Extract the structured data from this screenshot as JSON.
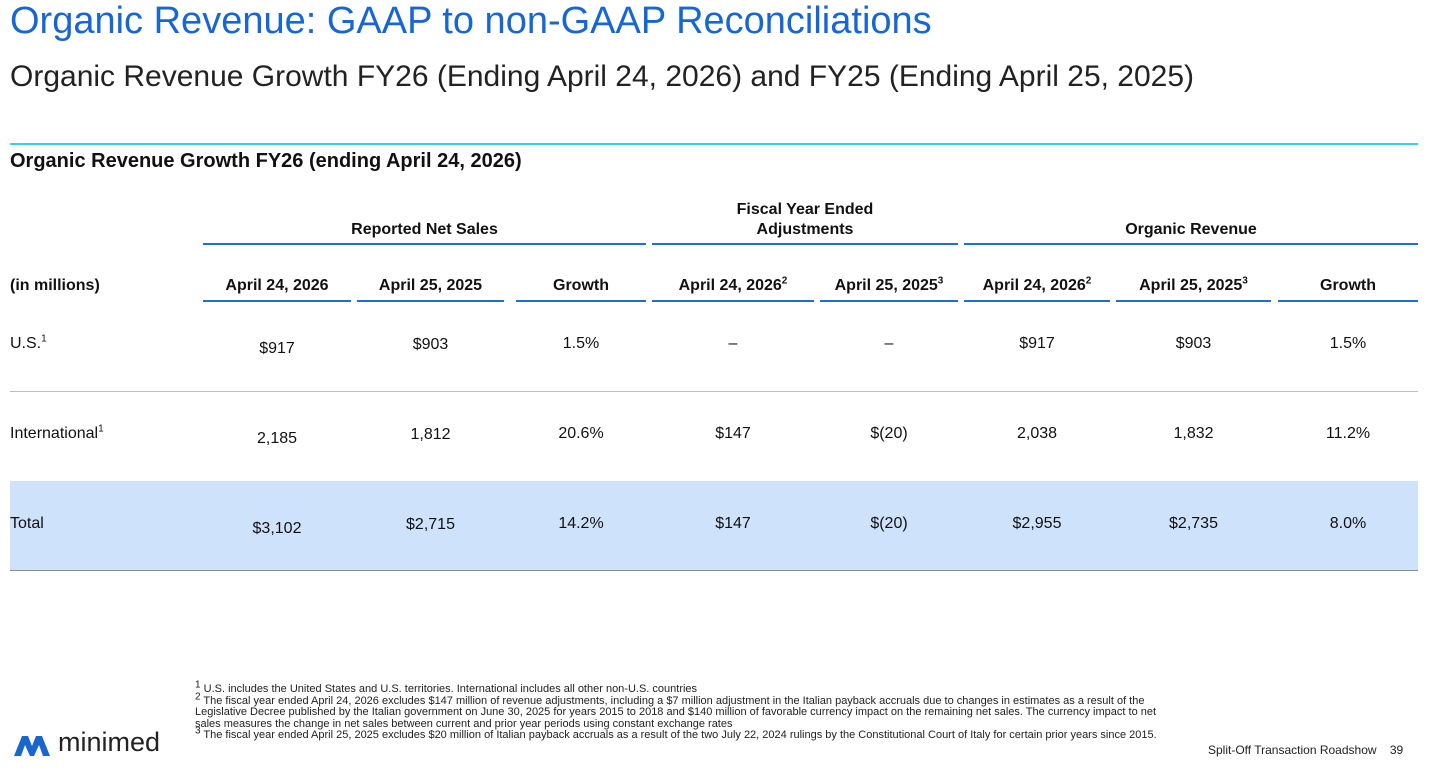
{
  "title": "Organic Revenue: GAAP to non-GAAP Reconciliations",
  "subtitle": "Organic Revenue Growth FY26 (Ending April 24, 2026) and FY25 (Ending April 25, 2025)",
  "section_title": "Organic Revenue Growth FY26 (ending April 24, 2026)",
  "groups": {
    "reported": "Reported Net Sales",
    "adjustments_line1": "Fiscal Year Ended",
    "adjustments_line2": "Adjustments",
    "organic": "Organic Revenue"
  },
  "columns": {
    "label": "(in millions)",
    "c1": "April 24, 2026",
    "c2": "April 25, 2025",
    "c3": "Growth",
    "c4": "April 24, 2026",
    "c4_sup": "2",
    "c5": "April 25, 2025",
    "c5_sup": "3",
    "c6": "April 24, 2026",
    "c6_sup": "2",
    "c7": "April 25, 2025",
    "c7_sup": "3",
    "c8": "Growth"
  },
  "rows": [
    {
      "label": "U.S.",
      "sup": "1",
      "c1": "$917",
      "c2": "$903",
      "c3": "1.5%",
      "c4": "–",
      "c5": "–",
      "c6": "$917",
      "c7": "$903",
      "c8": "1.5%"
    },
    {
      "label": "International",
      "sup": "1",
      "c1": "2,185",
      "c2": "1,812",
      "c3": "20.6%",
      "c4": "$147",
      "c5": "$(20)",
      "c6": "2,038",
      "c7": "1,832",
      "c8": "11.2%"
    },
    {
      "label": "Total",
      "sup": "",
      "c1": "$3,102",
      "c2": "$2,715",
      "c3": "14.2%",
      "c4": "$147",
      "c5": "$(20)",
      "c6": "$2,955",
      "c7": "$2,735",
      "c8": "8.0%"
    }
  ],
  "footnotes": {
    "f1_mark": "1",
    "f1": "U.S. includes the United States and U.S. territories. International includes all other non-U.S. countries",
    "f2_mark": "2",
    "f2": "The fiscal year ended April 24, 2026 excludes $147 million of revenue adjustments, including a $7 million adjustment in the Italian payback accruals due to changes in estimates as a result of the Legislative Decree published by the Italian government on June 30, 2025 for years 2015 to 2018 and $140 million of favorable currency impact on the remaining net sales. The currency impact to net sales measures the change in net sales between current and prior year periods using constant exchange rates",
    "f3_mark": "3",
    "f3": "The fiscal year ended April 25, 2025 excludes $20 million of Italian payback accruals as a result of the two July 22, 2024 rulings by the Constitutional Court of Italy for certain prior years since 2015."
  },
  "logo_text": "minimed",
  "footer_text": "Split-Off Transaction Roadshow",
  "page_number": "39",
  "colors": {
    "title": "#1666d6",
    "accent_rule": "#39d0e3",
    "header_line": "#1d6fd6",
    "total_bg": "#cfe2fb",
    "logo": "#1a66d1"
  }
}
